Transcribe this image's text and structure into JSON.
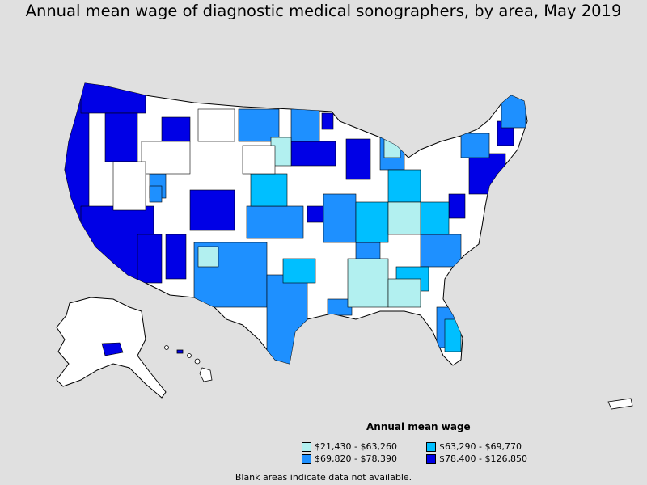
{
  "title": "Annual mean wage of diagnostic medical sonographers, by area, May 2019",
  "legend": {
    "title": "Annual mean wage",
    "items": [
      {
        "label": "$21,430 - $63,260",
        "color": "#b2f0f0"
      },
      {
        "label": "$63,290 - $69,770",
        "color": "#00bfff"
      },
      {
        "label": "$69,820 - $78,390",
        "color": "#1e90ff"
      },
      {
        "label": "$78,400 - $126,850",
        "color": "#0000e6"
      }
    ]
  },
  "footnote": "Blank areas indicate data not available.",
  "colors": {
    "background": "#e0e0e0",
    "no_data": "#ffffff",
    "border": "#000000"
  }
}
